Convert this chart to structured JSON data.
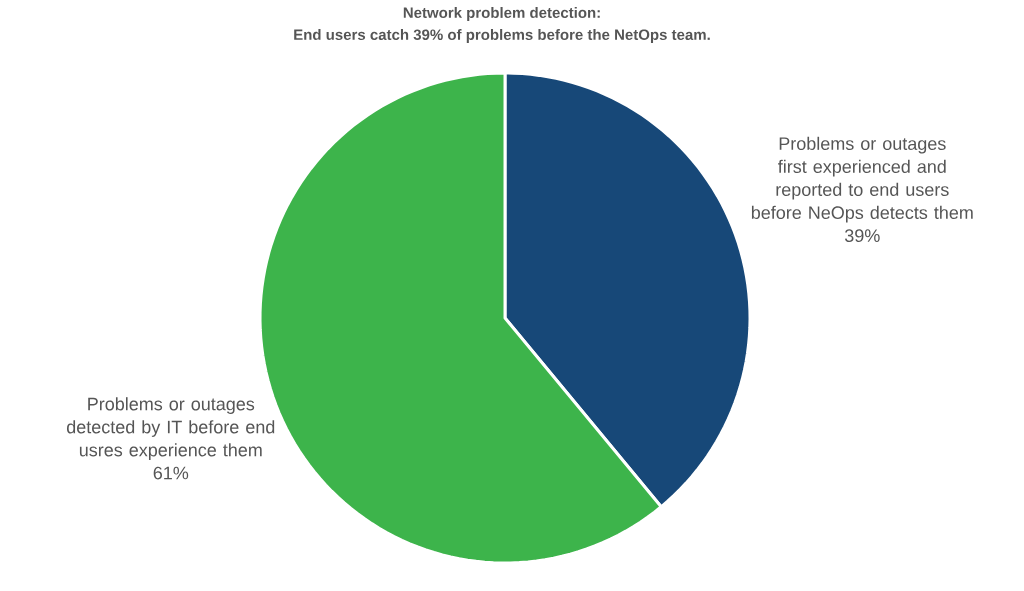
{
  "chart_data": {
    "type": "pie",
    "title": "Network problem detection:",
    "subtitle": "End users catch 39% of problems before the NetOps team.",
    "categories": [
      "Problems or outages first experienced and reported to end users before NeOps detects them",
      "Problems or outages detected by IT before end usres experience them"
    ],
    "values": [
      39,
      61
    ],
    "value_labels": [
      "39%",
      "61%"
    ],
    "colors": [
      "#174878",
      "#3db44b"
    ]
  }
}
